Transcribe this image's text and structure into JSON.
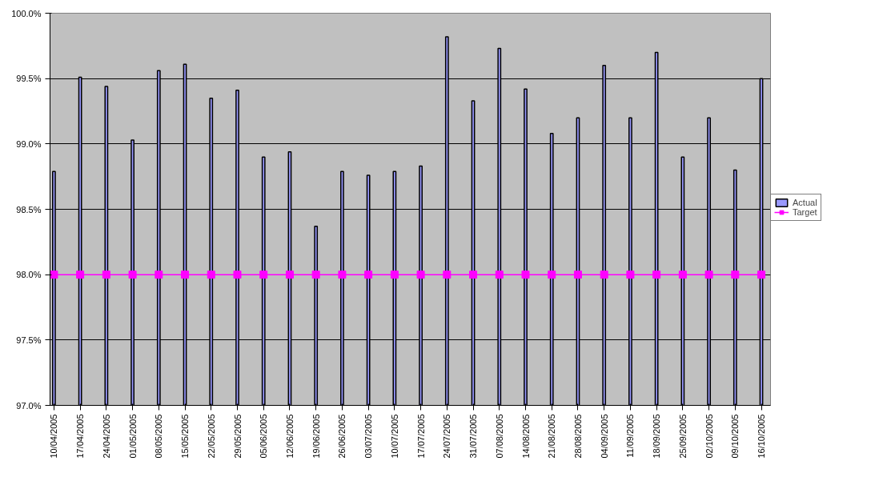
{
  "chart_data": {
    "type": "bar",
    "categories": [
      "10/04/2005",
      "17/04/2005",
      "24/04/2005",
      "01/05/2005",
      "08/05/2005",
      "15/05/2005",
      "22/05/2005",
      "29/05/2005",
      "05/06/2005",
      "12/06/2005",
      "19/06/2005",
      "26/06/2005",
      "03/07/2005",
      "10/07/2005",
      "17/07/2005",
      "24/07/2005",
      "31/07/2005",
      "07/08/2005",
      "14/08/2005",
      "21/08/2005",
      "28/08/2005",
      "04/09/2005",
      "11/09/2005",
      "18/09/2005",
      "25/09/2005",
      "02/10/2005",
      "09/10/2005",
      "16/10/2005"
    ],
    "series": [
      {
        "name": "Actual",
        "color": "#9999ff",
        "values": [
          98.79,
          99.51,
          99.44,
          99.03,
          99.56,
          99.61,
          99.35,
          99.41,
          98.9,
          98.94,
          98.37,
          98.79,
          98.76,
          98.79,
          98.83,
          99.82,
          99.33,
          99.73,
          99.42,
          99.08,
          99.2,
          99.6,
          99.2,
          99.7,
          98.9,
          99.2,
          98.8,
          99.5
        ]
      },
      {
        "name": "Target",
        "type": "line",
        "color": "#ff00ff",
        "marker": "square",
        "values": [
          98,
          98,
          98,
          98,
          98,
          98,
          98,
          98,
          98,
          98,
          98,
          98,
          98,
          98,
          98,
          98,
          98,
          98,
          98,
          98,
          98,
          98,
          98,
          98,
          98,
          98,
          98,
          98
        ]
      }
    ],
    "ylim": [
      97,
      100
    ],
    "yticks": [
      {
        "value": 97,
        "label": "97.0%"
      },
      {
        "value": 97.5,
        "label": "97.5%"
      },
      {
        "value": 98,
        "label": "98.0%"
      },
      {
        "value": 98.5,
        "label": "98.5%"
      },
      {
        "value": 99,
        "label": "99.0%"
      },
      {
        "value": 99.5,
        "label": "99.5%"
      },
      {
        "value": 100,
        "label": "100.0%"
      }
    ],
    "grid": "y",
    "legend": "right"
  }
}
